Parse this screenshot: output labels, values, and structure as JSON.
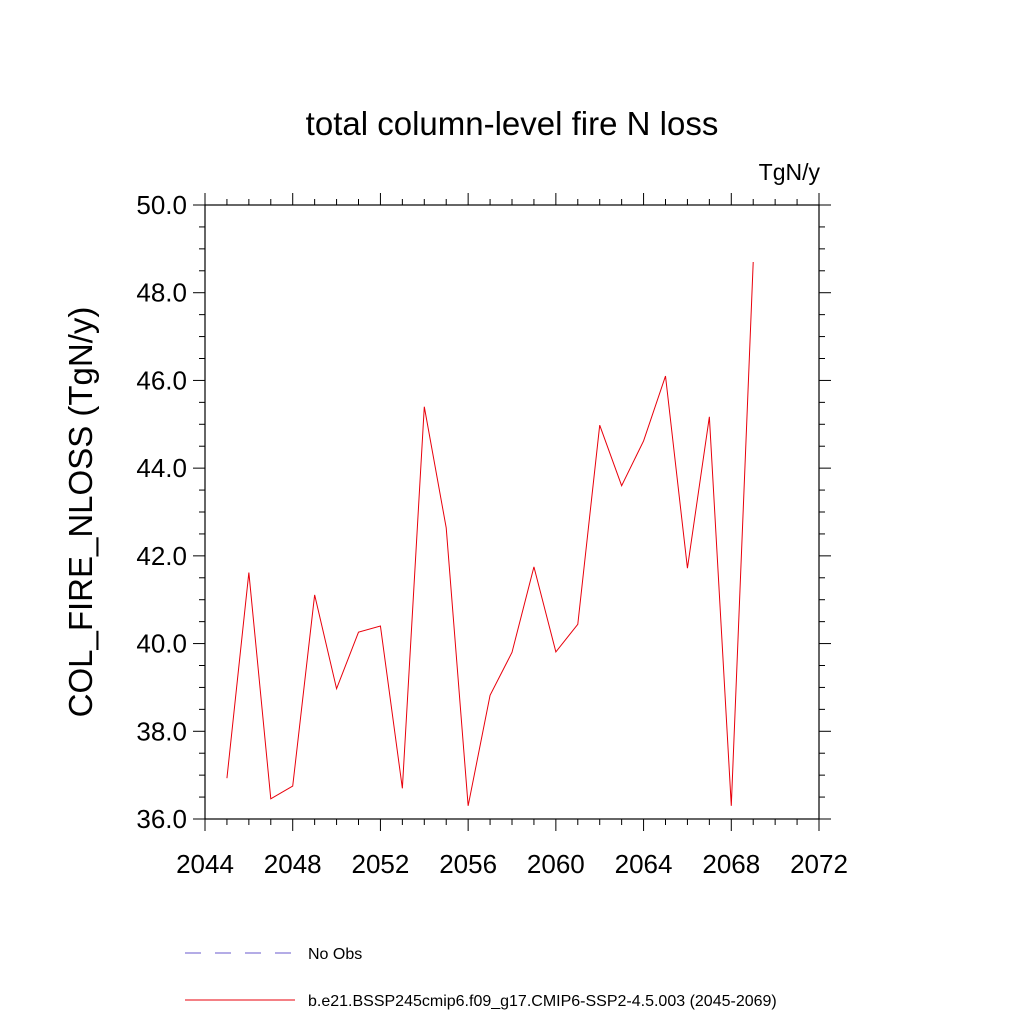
{
  "chart_data": {
    "type": "line",
    "title": "total column-level fire N loss",
    "units_label": "TgN/y",
    "ylabel": "COL_FIRE_NLOSS  (TgN/y)",
    "xlabel": "",
    "xlim": [
      2044,
      2072
    ],
    "ylim": [
      36.0,
      50.0
    ],
    "x_ticks": [
      "2044",
      "2048",
      "2052",
      "2056",
      "2060",
      "2064",
      "2068",
      "2072"
    ],
    "y_ticks": [
      "36.0",
      "38.0",
      "40.0",
      "42.0",
      "44.0",
      "46.0",
      "48.0",
      "50.0"
    ],
    "grid": false,
    "series": [
      {
        "name": "b.e21.BSSP245cmip6.f09_g17.CMIP6-SSP2-4.5.003 (2045-2069)",
        "color": "#e8000b",
        "x": [
          2045,
          2046,
          2047,
          2048,
          2049,
          2050,
          2051,
          2052,
          2053,
          2054,
          2055,
          2056,
          2057,
          2058,
          2059,
          2060,
          2061,
          2062,
          2063,
          2064,
          2065,
          2066,
          2067,
          2068,
          2069
        ],
        "y": [
          36.93,
          41.62,
          36.46,
          36.75,
          41.11,
          38.97,
          40.26,
          40.4,
          36.7,
          45.4,
          42.64,
          36.3,
          38.82,
          39.8,
          41.75,
          39.81,
          40.44,
          44.98,
          43.6,
          44.62,
          46.1,
          41.72,
          45.17,
          36.3,
          48.7
        ]
      }
    ],
    "legend": {
      "placement": "bottom",
      "entries": [
        {
          "label": "No Obs",
          "style": "dashed",
          "color": "#6a5acd"
        },
        {
          "label": "b.e21.BSSP245cmip6.f09_g17.CMIP6-SSP2-4.5.003 (2045-2069)",
          "style": "solid",
          "color": "#e8000b"
        }
      ]
    }
  }
}
